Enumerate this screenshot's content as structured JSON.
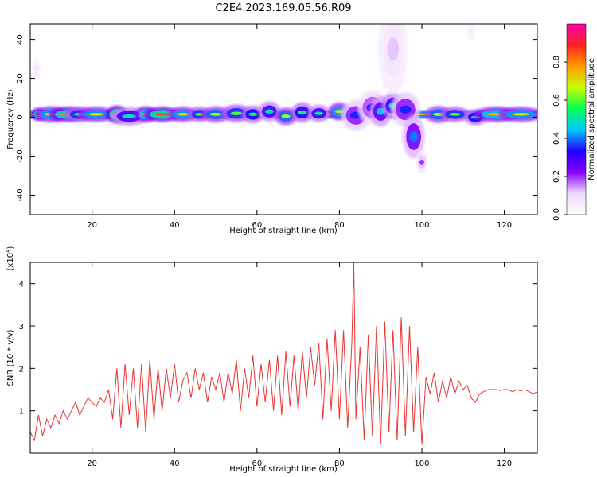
{
  "title": "C2E4.2023.169.05.56.R09",
  "chart_data": [
    {
      "type": "heatmap",
      "xlabel": "Height of straight line (km)",
      "ylabel": "Frequency (Hz)",
      "xlim": [
        5,
        128
      ],
      "ylim": [
        -50,
        48
      ],
      "xticks": [
        20,
        40,
        60,
        80,
        100,
        120
      ],
      "yticks": [
        -40,
        -20,
        0,
        20,
        40
      ],
      "colorbar": {
        "label": "Normalized spectral amplitude",
        "range": [
          0,
          1
        ],
        "ticks": [
          "0.0",
          "0.2",
          "0.4",
          "0.6",
          "0.8"
        ],
        "colors": [
          "#ffffff",
          "#f0d8ff",
          "#8a00ff",
          "#2200ff",
          "#00c8ff",
          "#00ff55",
          "#c8ff00",
          "#ff9900",
          "#ff2222",
          "#ff00aa"
        ]
      },
      "band": {
        "freq_center": 1.5,
        "freq_halfwidth": 2,
        "x_start": 5,
        "x_end": 128
      },
      "blobs": [
        {
          "x": 7,
          "y": 1.5,
          "w": 1.0,
          "h": 1.0,
          "a": 0.85
        },
        {
          "x": 10,
          "y": 1.5,
          "w": 2.2,
          "h": 1.3,
          "a": 0.7
        },
        {
          "x": 14,
          "y": 1.5,
          "w": 2.5,
          "h": 1.2,
          "a": 0.8
        },
        {
          "x": 17,
          "y": 1.5,
          "w": 2.0,
          "h": 1.2,
          "a": 0.6
        },
        {
          "x": 21,
          "y": 1.5,
          "w": 2.5,
          "h": 1.2,
          "a": 0.7
        },
        {
          "x": 26,
          "y": 1.5,
          "w": 1.5,
          "h": 1.5,
          "a": 0.85
        },
        {
          "x": 29,
          "y": 0.5,
          "w": 2.5,
          "h": 1.6,
          "a": 0.5
        },
        {
          "x": 33,
          "y": 1.5,
          "w": 1.5,
          "h": 1.3,
          "a": 0.75
        },
        {
          "x": 37,
          "y": 1.5,
          "w": 2.5,
          "h": 1.2,
          "a": 0.85
        },
        {
          "x": 42,
          "y": 1.5,
          "w": 2.0,
          "h": 1.2,
          "a": 0.7
        },
        {
          "x": 46,
          "y": 1.5,
          "w": 1.5,
          "h": 1.2,
          "a": 0.6
        },
        {
          "x": 50,
          "y": 1.5,
          "w": 2.0,
          "h": 1.3,
          "a": 0.65
        },
        {
          "x": 55,
          "y": 2.0,
          "w": 2.0,
          "h": 1.5,
          "a": 0.6
        },
        {
          "x": 59,
          "y": 1.5,
          "w": 1.5,
          "h": 1.5,
          "a": 0.55
        },
        {
          "x": 63,
          "y": 3.0,
          "w": 1.5,
          "h": 1.8,
          "a": 0.5
        },
        {
          "x": 67,
          "y": 0.5,
          "w": 1.5,
          "h": 1.5,
          "a": 0.65
        },
        {
          "x": 71,
          "y": 2.5,
          "w": 1.5,
          "h": 1.8,
          "a": 0.55
        },
        {
          "x": 75,
          "y": 2.0,
          "w": 1.5,
          "h": 1.5,
          "a": 0.5
        },
        {
          "x": 80,
          "y": 3.0,
          "w": 1.5,
          "h": 1.5,
          "a": 0.7
        },
        {
          "x": 84,
          "y": 1.0,
          "w": 2.0,
          "h": 3.0,
          "a": 0.35
        },
        {
          "x": 88,
          "y": 5.0,
          "w": 2.0,
          "h": 3.5,
          "a": 0.3
        },
        {
          "x": 90,
          "y": 3.0,
          "w": 1.5,
          "h": 3.0,
          "a": 0.45
        },
        {
          "x": 93,
          "y": 6.0,
          "w": 1.5,
          "h": 2.5,
          "a": 0.5
        },
        {
          "x": 96,
          "y": 4.0,
          "w": 2.0,
          "h": 3.5,
          "a": 0.35
        },
        {
          "x": 98,
          "y": -10.0,
          "w": 1.5,
          "h": 4.5,
          "a": 0.4
        },
        {
          "x": 100,
          "y": -23.0,
          "w": 0.8,
          "h": 2.0,
          "a": 0.2
        },
        {
          "x": 104,
          "y": 1.5,
          "w": 1.8,
          "h": 1.4,
          "a": 0.65
        },
        {
          "x": 108,
          "y": 1.5,
          "w": 2.0,
          "h": 1.2,
          "a": 0.6
        },
        {
          "x": 113,
          "y": 0.0,
          "w": 1.5,
          "h": 1.3,
          "a": 0.55
        },
        {
          "x": 118,
          "y": 1.5,
          "w": 3.0,
          "h": 1.2,
          "a": 0.75
        },
        {
          "x": 124,
          "y": 1.5,
          "w": 3.0,
          "h": 1.2,
          "a": 0.7
        },
        {
          "x": 93,
          "y": 35.0,
          "w": 2.0,
          "h": 10.0,
          "a": 0.12
        },
        {
          "x": 6.5,
          "y": 25.0,
          "w": 0.6,
          "h": 2.0,
          "a": 0.08
        },
        {
          "x": 112,
          "y": 45.0,
          "w": 0.6,
          "h": 2.0,
          "a": 0.06
        }
      ]
    },
    {
      "type": "line",
      "xlabel": "Height of straight line (km)",
      "ylabel": "SNR (10 * v/v)",
      "y_multiplier": "(x10",
      "y_multiplier_exp": "4",
      "y_multiplier_close": ")",
      "xlim": [
        5,
        128
      ],
      "ylim": [
        0,
        4.5
      ],
      "xticks": [
        20,
        40,
        60,
        80,
        100,
        120
      ],
      "yticks": [
        1,
        2,
        3,
        4
      ],
      "color": "#ee3333",
      "series": [
        {
          "x": [
            5,
            6,
            7,
            8,
            9,
            10,
            11,
            12,
            13,
            14,
            15,
            16,
            17,
            18,
            19,
            20,
            21,
            22,
            23,
            24,
            25,
            26,
            27,
            28,
            29,
            30,
            31,
            32,
            33,
            34,
            35,
            36,
            37,
            38,
            39,
            40,
            41,
            42,
            43,
            44,
            45,
            46,
            47,
            48,
            49,
            50,
            51,
            52,
            53,
            54,
            55,
            56,
            57,
            58,
            59,
            60,
            61,
            62,
            63,
            64,
            65,
            66,
            67,
            68,
            69,
            70,
            71,
            72,
            73,
            74,
            75,
            76,
            77,
            78,
            79,
            80,
            81,
            82,
            83,
            83.5,
            84,
            85,
            86,
            87,
            88,
            89,
            90,
            91,
            92,
            93,
            94,
            95,
            96,
            97,
            98,
            99,
            100,
            101,
            102,
            103,
            104,
            105,
            106,
            107,
            108,
            109,
            110,
            111,
            112,
            113,
            114,
            115,
            116,
            117,
            118,
            119,
            120,
            121,
            122,
            123,
            124,
            125,
            126,
            127,
            128
          ],
          "y": [
            0.5,
            0.3,
            0.9,
            0.4,
            0.8,
            0.6,
            0.9,
            0.7,
            1.0,
            0.8,
            1.0,
            1.2,
            0.9,
            1.1,
            1.3,
            1.2,
            1.1,
            1.3,
            1.2,
            1.5,
            0.8,
            2.0,
            0.6,
            2.1,
            0.9,
            2.0,
            0.6,
            2.1,
            0.5,
            2.2,
            0.8,
            2.0,
            1.0,
            2.0,
            1.3,
            2.1,
            1.2,
            1.7,
            1.9,
            1.3,
            2.0,
            1.5,
            1.9,
            1.2,
            1.8,
            1.5,
            1.9,
            1.2,
            1.9,
            1.4,
            2.2,
            1.0,
            2.0,
            1.3,
            2.3,
            1.1,
            2.1,
            1.2,
            2.2,
            1.0,
            2.3,
            0.9,
            2.4,
            1.1,
            2.3,
            1.0,
            2.4,
            1.3,
            2.5,
            1.6,
            2.6,
            0.8,
            2.7,
            1.0,
            2.9,
            0.8,
            2.9,
            0.6,
            2.6,
            4.5,
            0.8,
            2.5,
            0.3,
            2.8,
            0.4,
            3.0,
            0.2,
            3.1,
            0.5,
            2.9,
            0.3,
            3.2,
            0.4,
            3.0,
            0.5,
            2.5,
            0.2,
            1.8,
            1.4,
            1.9,
            1.2,
            1.7,
            1.3,
            1.8,
            1.4,
            1.7,
            1.5,
            1.6,
            1.3,
            1.2,
            1.4,
            1.45,
            1.5,
            1.5,
            1.5,
            1.48,
            1.5,
            1.5,
            1.45,
            1.5,
            1.47,
            1.5,
            1.45,
            1.4,
            1.45
          ]
        }
      ]
    }
  ]
}
